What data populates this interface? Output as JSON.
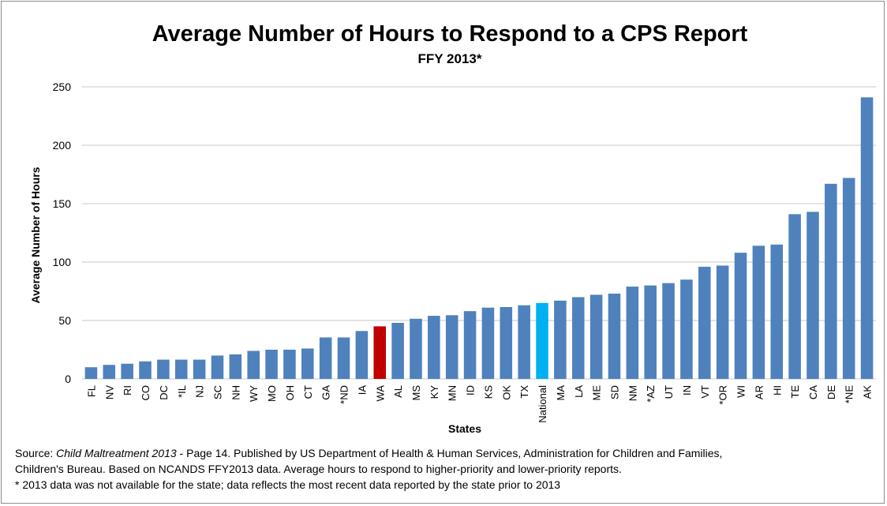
{
  "colors": {
    "bar": "#4f81bd",
    "highlight_state": "#c00000",
    "national": "#00b0f0",
    "grid": "#c8c8c8"
  },
  "chart_data": {
    "type": "bar",
    "title": "Average Number of Hours to Respond to a CPS Report",
    "subtitle": "FFY 2013*",
    "xlabel": "States",
    "ylabel": "Average Number of Hours",
    "ylim": [
      0,
      250
    ],
    "yticks": [
      "0",
      "50",
      "100",
      "150",
      "200",
      "250"
    ],
    "grid": true,
    "legend": "none",
    "categories": [
      "FL",
      "NV",
      "RI",
      "CO",
      "DC",
      "*IL",
      "NJ",
      "SC",
      "NH",
      "WY",
      "MO",
      "OH",
      "CT",
      "GA",
      "*ND",
      "IA",
      "WA",
      "AL",
      "MS",
      "KY",
      "MN",
      "ID",
      "KS",
      "OK",
      "TX",
      "National",
      "MA",
      "LA",
      "ME",
      "SD",
      "NM",
      "*AZ",
      "UT",
      "IN",
      "VT",
      "*OR",
      "WI",
      "AR",
      "HI",
      "TE",
      "CA",
      "DE",
      "*NE",
      "AK"
    ],
    "values": [
      10,
      12,
      13,
      15,
      16.5,
      16.5,
      16.5,
      20,
      21,
      24,
      25,
      25,
      26,
      35.5,
      35.5,
      41,
      45,
      48,
      51.5,
      54,
      54.5,
      58,
      61,
      61.5,
      63,
      65,
      67,
      70,
      72,
      73,
      79,
      80,
      82,
      85,
      96,
      97,
      108,
      114,
      115,
      141,
      143,
      167,
      172,
      241
    ],
    "highlight": {
      "WA": "highlight_state",
      "National": "national"
    }
  },
  "source": {
    "prefix": "Source: ",
    "title_italic": "Child Maltreatment 2013",
    "line1_rest": " - Page 14.  Published by US Department of Health & Human Services, Administration for Children and Families,",
    "line2": "Children's Bureau.  Based on NCANDS FFY2013 data.  Average hours to respond to higher-priority and lower-priority reports.",
    "footnote": "* 2013 data was not available for the state; data reflects the most recent data reported by the state prior to 2013"
  }
}
